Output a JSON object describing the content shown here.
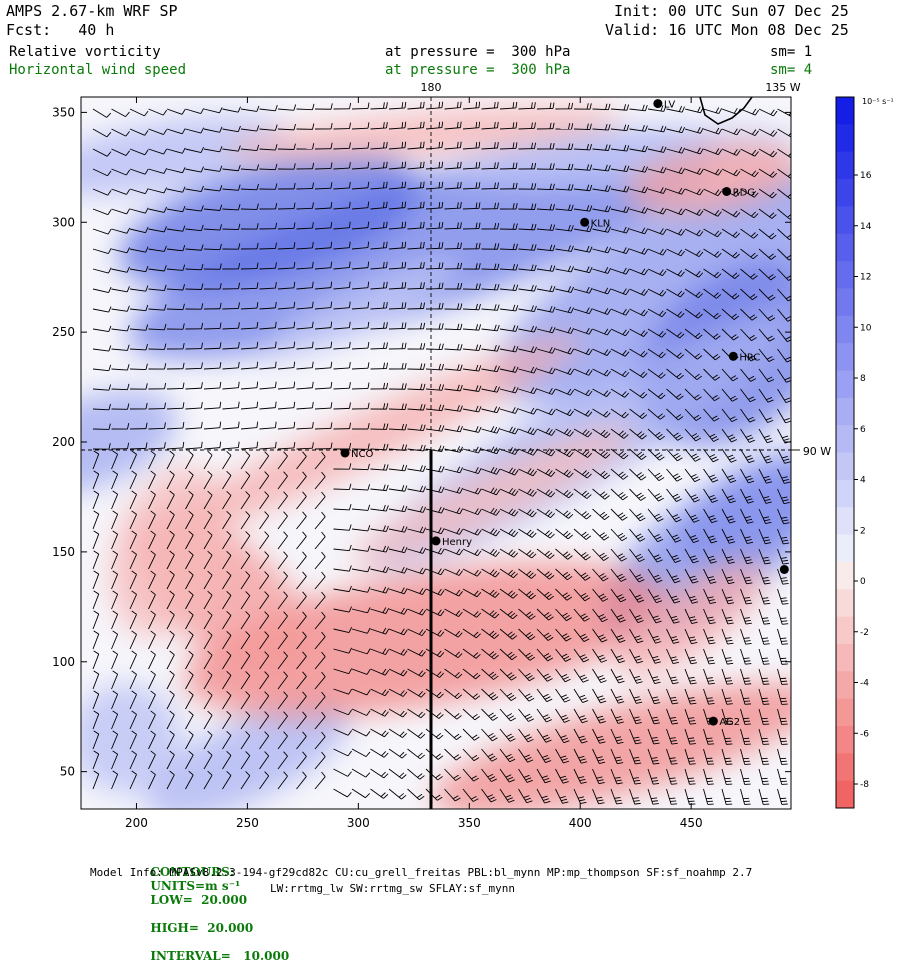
{
  "header": {
    "model": "AMPS 2.67-km WRF SP",
    "fcst": "Fcst:   40 h",
    "init": "Init: 00 UTC Sun 07 Dec 25",
    "valid": "Valid: 16 UTC Mon 08 Dec 25"
  },
  "fields": {
    "f1_name": "Relative vorticity",
    "f1_level": "at pressure =  300 hPa",
    "f1_sm": "sm= 1",
    "f2_name": "Horizontal wind speed",
    "f2_level": "at pressure =  300 hPa",
    "f2_sm": "sm= 4"
  },
  "map": {
    "lon_180": "180",
    "lon_135w": "135 W",
    "lon_90w": "90 W",
    "x_ticks": [
      "200",
      "250",
      "300",
      "350",
      "400",
      "450"
    ],
    "y_ticks": [
      "50",
      "100",
      "150",
      "200",
      "250",
      "300",
      "350"
    ],
    "stations": [
      {
        "name": "LV",
        "x": 435,
        "y": 354
      },
      {
        "name": "RDG",
        "x": 466,
        "y": 314
      },
      {
        "name": "KLN",
        "x": 402,
        "y": 300
      },
      {
        "name": "HRC",
        "x": 469,
        "y": 239
      },
      {
        "name": "NCO",
        "x": 294,
        "y": 195
      },
      {
        "name": "Henry",
        "x": 335,
        "y": 155
      },
      {
        "name": "AG2",
        "x": 460,
        "y": 73
      },
      {
        "name": "",
        "x": 492,
        "y": 142
      }
    ]
  },
  "colorbar": {
    "unit": "10⁻⁵ s⁻¹",
    "labels": [
      "16",
      "14",
      "12",
      "10",
      "8",
      "6",
      "4",
      "2",
      "0",
      "-2",
      "-4",
      "-6",
      "-8"
    ],
    "positive_color": "#1f3fe0",
    "negative_color": "#f07070"
  },
  "footer": {
    "contours_label": "CONTOURS:",
    "units": "UNITS=m s⁻¹",
    "low": "LOW=  20.000",
    "high": "HIGH=  20.000",
    "interval": "INTERVAL=   10.000",
    "model_info": "Model Info: MPASv8.2.3-194-gf29cd82c CU:cu_grell_freitas PBL:bl_mynn MP:mp_thompson SF:sf_noahmp 2.7",
    "model_info2": "LW:rrtmg_lw SW:rrtmg_sw SFLAY:sf_mynn"
  }
}
